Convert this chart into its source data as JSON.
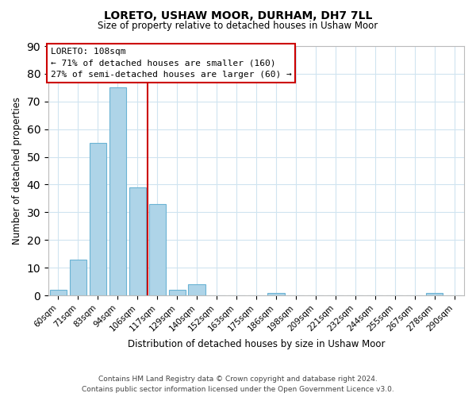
{
  "title": "LORETO, USHAW MOOR, DURHAM, DH7 7LL",
  "subtitle": "Size of property relative to detached houses in Ushaw Moor",
  "xlabel": "Distribution of detached houses by size in Ushaw Moor",
  "ylabel": "Number of detached properties",
  "bar_labels": [
    "60sqm",
    "71sqm",
    "83sqm",
    "94sqm",
    "106sqm",
    "117sqm",
    "129sqm",
    "140sqm",
    "152sqm",
    "163sqm",
    "175sqm",
    "186sqm",
    "198sqm",
    "209sqm",
    "221sqm",
    "232sqm",
    "244sqm",
    "255sqm",
    "267sqm",
    "278sqm",
    "290sqm"
  ],
  "bar_values": [
    2,
    13,
    55,
    75,
    39,
    33,
    2,
    4,
    0,
    0,
    0,
    1,
    0,
    0,
    0,
    0,
    0,
    0,
    0,
    1,
    0
  ],
  "bar_color": "#aed4e8",
  "bar_edge_color": "#6bb3d4",
  "ylim": [
    0,
    90
  ],
  "yticks": [
    0,
    10,
    20,
    30,
    40,
    50,
    60,
    70,
    80,
    90
  ],
  "property_line_index": 4,
  "property_line_color": "#cc0000",
  "annotation_title": "LORETO: 108sqm",
  "annotation_line1": "← 71% of detached houses are smaller (160)",
  "annotation_line2": "27% of semi-detached houses are larger (60) →",
  "footer_line1": "Contains HM Land Registry data © Crown copyright and database right 2024.",
  "footer_line2": "Contains public sector information licensed under the Open Government Licence v3.0.",
  "background_color": "#ffffff",
  "grid_color": "#d0e4f0"
}
